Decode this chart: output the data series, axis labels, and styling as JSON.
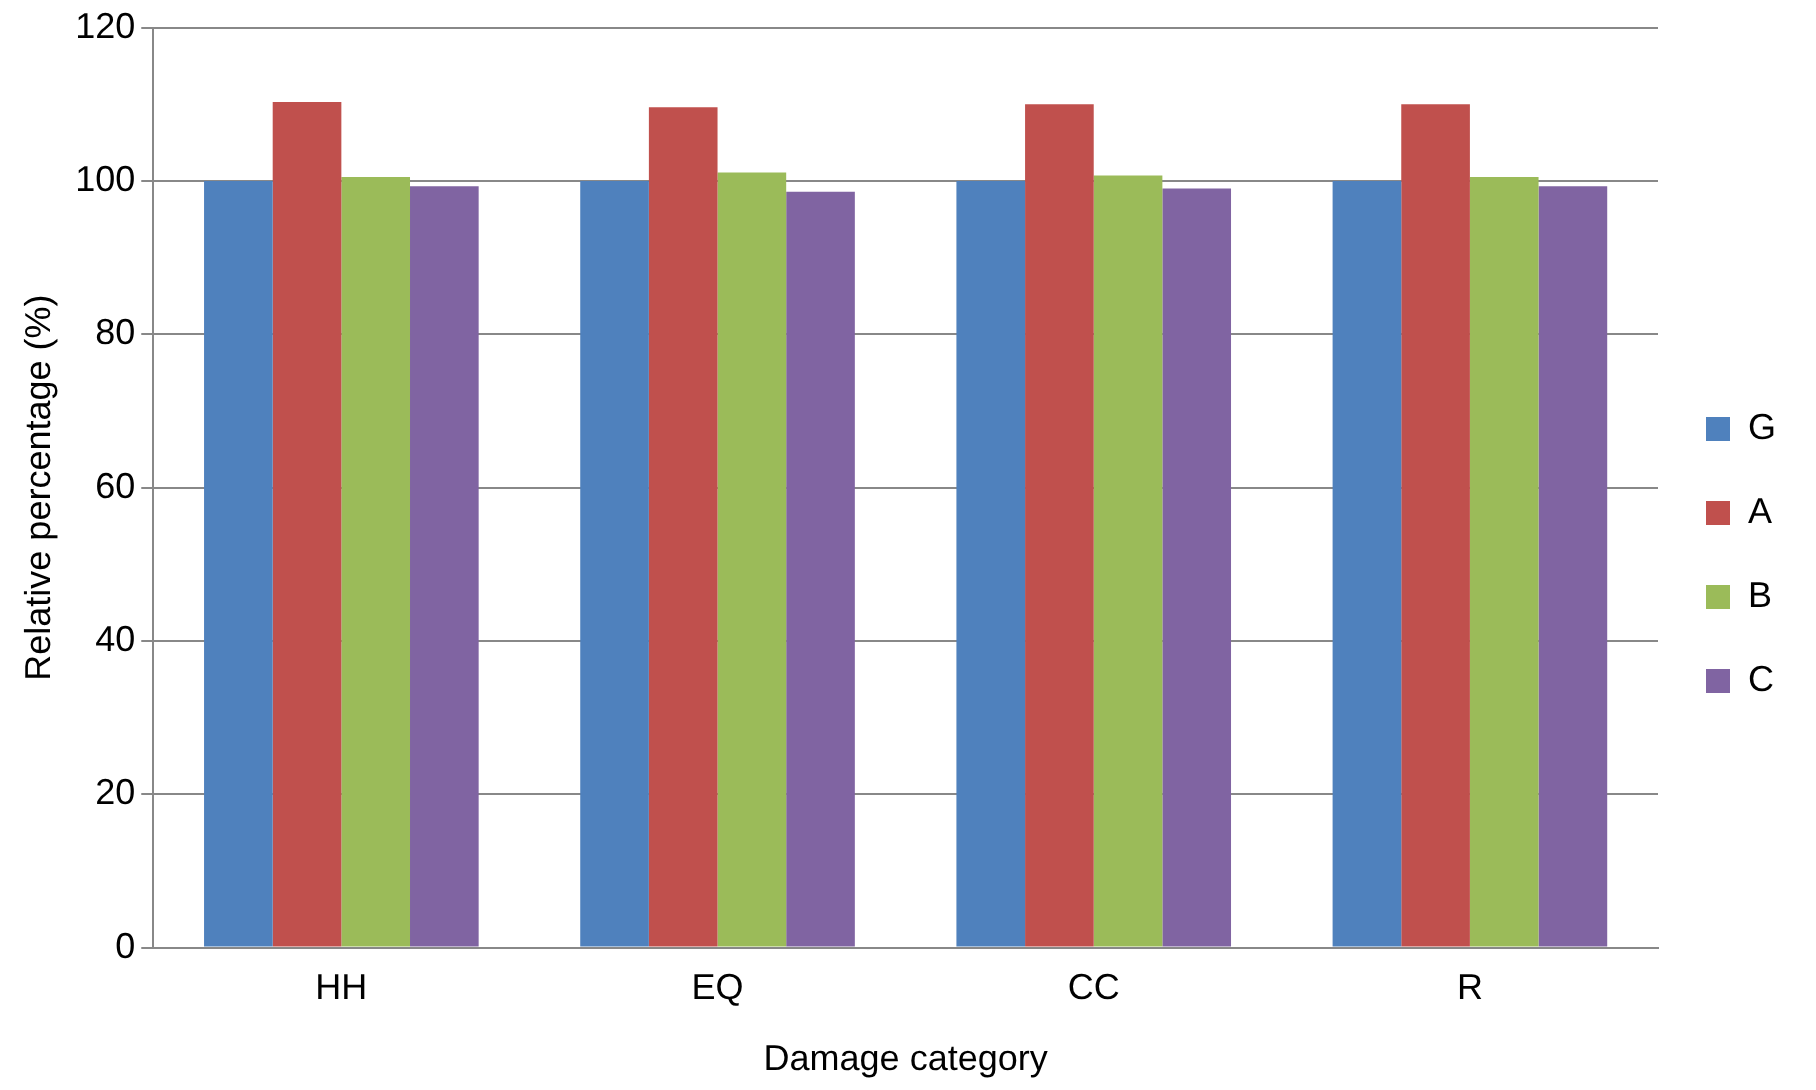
{
  "chart_data": {
    "type": "bar",
    "xlabel": "Damage category",
    "ylabel": "Relative percentage (%)",
    "categories": [
      "HH",
      "EQ",
      "CC",
      "R"
    ],
    "series": [
      {
        "name": "G",
        "color": "#4f81bd",
        "values": [
          100,
          100,
          100,
          100
        ]
      },
      {
        "name": "A",
        "color": "#c0504d",
        "values": [
          110.3,
          109.6,
          110,
          110
        ]
      },
      {
        "name": "B",
        "color": "#9bbb59",
        "values": [
          100.5,
          101.1,
          100.7,
          100.5
        ]
      },
      {
        "name": "C",
        "color": "#8064a2",
        "values": [
          99.3,
          98.6,
          99,
          99.3
        ]
      }
    ],
    "ylim": [
      0,
      120
    ],
    "yticks": [
      0,
      20,
      40,
      60,
      80,
      100,
      120
    ],
    "grid": "y",
    "legend": "right"
  }
}
